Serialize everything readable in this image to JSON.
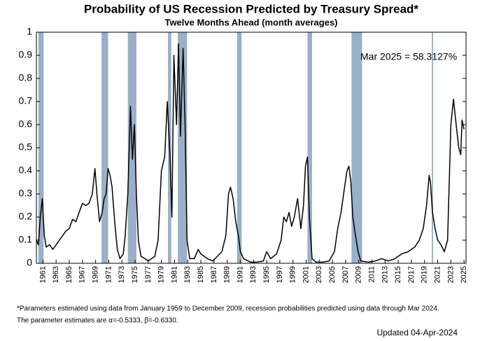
{
  "chart_data": {
    "type": "line",
    "title": "Probability of US Recession Predicted by Treasury Spread*",
    "subtitle": "Twelve Months Ahead (month averages)",
    "annotation": "Mar 2025 = 58.3127%",
    "footnotes": [
      "*Parameters estimated using data from January 1959 to December 2009, recession probabilities predicted using data through Mar 2024.",
      "The parameter estimates are α=-0.5333, β=-0.6330."
    ],
    "updated": "Updated 04-Apr-2024",
    "color": "#000000",
    "recession_color": "#9ab0c8",
    "recessions": [
      [
        1960.3,
        1961.1
      ],
      [
        1969.9,
        1970.9
      ],
      [
        1973.9,
        1975.2
      ],
      [
        1980.0,
        1980.5
      ],
      [
        1981.5,
        1982.9
      ],
      [
        1990.5,
        1991.2
      ],
      [
        2001.2,
        2001.9
      ],
      [
        2007.9,
        2009.5
      ],
      [
        2020.1,
        2020.3
      ]
    ],
    "x": [
      1960.0,
      1960.3,
      1960.6,
      1960.9,
      1961.2,
      1961.5,
      1962.0,
      1962.5,
      1963.0,
      1963.5,
      1964.0,
      1964.5,
      1965.0,
      1965.5,
      1966.0,
      1966.5,
      1967.0,
      1967.5,
      1968.0,
      1968.5,
      1968.9,
      1969.2,
      1969.6,
      1970.0,
      1970.3,
      1970.6,
      1970.9,
      1971.2,
      1971.5,
      1971.9,
      1972.3,
      1972.7,
      1973.2,
      1973.5,
      1973.9,
      1974.3,
      1974.6,
      1974.9,
      1975.2,
      1975.5,
      1975.9,
      1976.5,
      1977.0,
      1977.5,
      1978.0,
      1978.5,
      1979.0,
      1979.5,
      1979.9,
      1980.3,
      1980.6,
      1980.9,
      1981.3,
      1981.6,
      1981.9,
      1982.3,
      1982.6,
      1982.9,
      1983.3,
      1984.0,
      1984.6,
      1985.0,
      1986.0,
      1986.8,
      1987.5,
      1988.2,
      1988.8,
      1989.2,
      1989.5,
      1989.9,
      1990.3,
      1990.7,
      1991.0,
      1991.5,
      1992.5,
      1993.5,
      1994.5,
      1995.0,
      1995.6,
      1996.5,
      1997.2,
      1997.6,
      1998.0,
      1998.4,
      1998.8,
      1999.2,
      1999.7,
      2000.2,
      2000.6,
      2000.9,
      2001.2,
      2001.5,
      2001.9,
      2002.5,
      2003.5,
      2004.5,
      2005.3,
      2005.8,
      2006.3,
      2006.8,
      2007.2,
      2007.5,
      2007.8,
      2008.1,
      2008.5,
      2008.9,
      2009.3,
      2010.5,
      2011.5,
      2012.5,
      2013.5,
      2014.5,
      2015.5,
      2016.5,
      2017.5,
      2018.2,
      2018.8,
      2019.3,
      2019.7,
      2019.9,
      2020.2,
      2020.6,
      2021.0,
      2021.5,
      2022.0,
      2022.5,
      2023.0,
      2023.4,
      2023.8,
      2024.2,
      2024.5,
      2024.7,
      2025.0
    ],
    "values": [
      0.1,
      0.08,
      0.2,
      0.28,
      0.12,
      0.07,
      0.08,
      0.06,
      0.08,
      0.1,
      0.12,
      0.14,
      0.15,
      0.19,
      0.18,
      0.22,
      0.26,
      0.25,
      0.26,
      0.3,
      0.41,
      0.3,
      0.18,
      0.22,
      0.28,
      0.3,
      0.41,
      0.38,
      0.33,
      0.18,
      0.06,
      0.02,
      0.04,
      0.12,
      0.3,
      0.68,
      0.45,
      0.6,
      0.3,
      0.1,
      0.03,
      0.02,
      0.01,
      0.02,
      0.03,
      0.1,
      0.4,
      0.46,
      0.7,
      0.47,
      0.2,
      0.9,
      0.6,
      0.95,
      0.55,
      0.93,
      0.6,
      0.1,
      0.02,
      0.02,
      0.06,
      0.04,
      0.02,
      0.01,
      0.03,
      0.05,
      0.12,
      0.3,
      0.33,
      0.28,
      0.18,
      0.12,
      0.05,
      0.02,
      0.005,
      0.005,
      0.01,
      0.05,
      0.02,
      0.04,
      0.1,
      0.2,
      0.18,
      0.22,
      0.16,
      0.2,
      0.28,
      0.15,
      0.25,
      0.42,
      0.46,
      0.2,
      0.02,
      0.005,
      0.005,
      0.01,
      0.05,
      0.15,
      0.22,
      0.32,
      0.4,
      0.42,
      0.35,
      0.2,
      0.12,
      0.05,
      0.01,
      0.005,
      0.01,
      0.02,
      0.01,
      0.02,
      0.04,
      0.05,
      0.07,
      0.1,
      0.15,
      0.25,
      0.38,
      0.35,
      0.22,
      0.15,
      0.1,
      0.08,
      0.05,
      0.1,
      0.6,
      0.71,
      0.6,
      0.5,
      0.47,
      0.62,
      0.58
    ],
    "xlim": [
      1960.0,
      2025.3
    ],
    "ylim": [
      0,
      1
    ],
    "xticks": [
      1961,
      1963,
      1965,
      1967,
      1969,
      1971,
      1973,
      1975,
      1977,
      1979,
      1981,
      1983,
      1985,
      1987,
      1989,
      1991,
      1993,
      1995,
      1997,
      1999,
      2001,
      2003,
      2005,
      2007,
      2009,
      2011,
      2013,
      2015,
      2017,
      2019,
      2021,
      2023,
      2025
    ],
    "yticks": [
      0,
      0.1,
      0.2,
      0.3,
      0.4,
      0.5,
      0.6,
      0.7,
      0.8,
      0.9,
      1
    ],
    "grid": false
  }
}
